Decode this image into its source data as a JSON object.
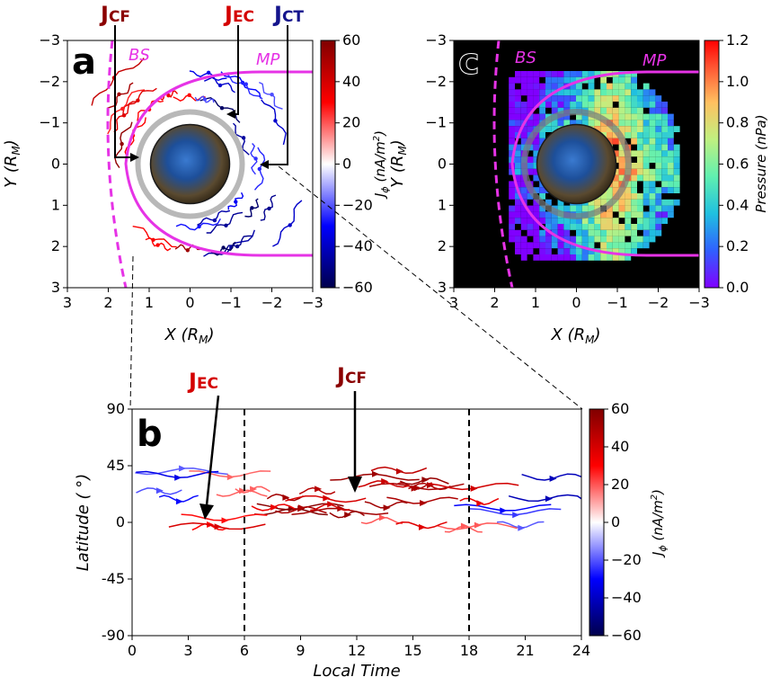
{
  "colors": {
    "bs_mp": "#e633e6",
    "j_cf": "#8b0000",
    "j_ec": "#d40000",
    "j_ct": "#14148c",
    "neg_current": "#1f3fb8",
    "pos_current": "#c01818"
  },
  "chart_data": [
    {
      "panel": "a",
      "type": "streamplot",
      "xlabel": "X (R_M)",
      "ylabel": "Y (R_M)",
      "xlim": [
        3,
        -3
      ],
      "ylim": [
        -3,
        3
      ],
      "xticks": [
        "3",
        "2",
        "1",
        "0",
        "−1",
        "−2",
        "−3"
      ],
      "yticks": [
        "−3",
        "−2",
        "−1",
        "0",
        "1",
        "2",
        "3"
      ],
      "annotations": [
        "BS",
        "MP"
      ],
      "current_labels": [
        {
          "main": "J",
          "sub": "CF"
        },
        {
          "main": "J",
          "sub": "EC"
        },
        {
          "main": "J",
          "sub": "CT"
        }
      ],
      "colorbar": {
        "label": "J_ϕ (nA/m²)",
        "range": [
          -60,
          60
        ],
        "ticks": [
          "60",
          "40",
          "20",
          "0",
          "−20",
          "−40",
          "−60"
        ],
        "colormap": "seismic"
      }
    },
    {
      "panel": "b",
      "type": "streamplot",
      "xlabel": "Local Time",
      "ylabel": "Latitude (°)",
      "xlim": [
        0,
        24
      ],
      "ylim": [
        -90,
        90
      ],
      "xticks": [
        "0",
        "3",
        "6",
        "9",
        "12",
        "15",
        "18",
        "21",
        "24"
      ],
      "yticks": [
        "90",
        "45",
        "0",
        "-45",
        "-90"
      ],
      "dashed_lines_x": [
        6,
        18
      ],
      "current_labels": [
        {
          "main": "J",
          "sub": "EC"
        },
        {
          "main": "J",
          "sub": "CF"
        }
      ],
      "colorbar": {
        "label": "J_ϕ (nA/m²)",
        "range": [
          -60,
          60
        ],
        "ticks": [
          "60",
          "40",
          "20",
          "0",
          "−20",
          "−40",
          "−60"
        ],
        "colormap": "seismic"
      }
    },
    {
      "panel": "c",
      "type": "heatmap",
      "xlabel": "X (R_M)",
      "ylabel": "Y (R_M)",
      "xlim": [
        3,
        -3
      ],
      "ylim": [
        -3,
        3
      ],
      "xticks": [
        "3",
        "2",
        "1",
        "0",
        "−1",
        "−2",
        "−3"
      ],
      "yticks": [
        "−3",
        "−2",
        "−1",
        "0",
        "1",
        "2",
        "3"
      ],
      "annotations": [
        "BS",
        "MP"
      ],
      "colorbar": {
        "label": "Pressure (nPa)",
        "range": [
          0,
          1.2
        ],
        "ticks": [
          "1.2",
          "1.0",
          "0.8",
          "0.6",
          "0.4",
          "0.2",
          "0.0"
        ],
        "colormap": "rainbow"
      }
    }
  ]
}
